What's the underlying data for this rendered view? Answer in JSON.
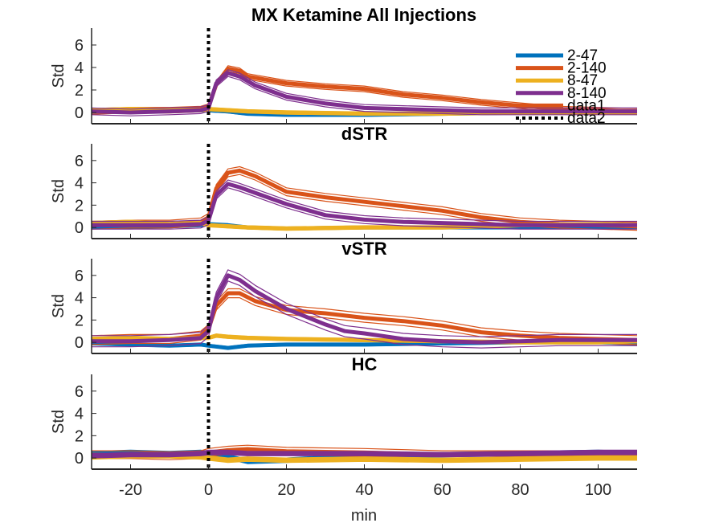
{
  "chart_data": {
    "type": "line",
    "title": "MX Ketamine All Injections",
    "xlabel": "min",
    "ylabel": "Std",
    "xlim": [
      -30,
      110
    ],
    "ylim": [
      -1,
      7.5
    ],
    "x_ticks": [
      -20,
      0,
      20,
      40,
      60,
      80,
      100
    ],
    "x_tick_labels": [
      "-20",
      "0",
      "20",
      "40",
      "60",
      "80",
      "100"
    ],
    "y_ticks": [
      0,
      2,
      4,
      6
    ],
    "y_tick_labels": [
      "0",
      "2",
      "4",
      "6"
    ],
    "grid": false,
    "legend_position": "top-right",
    "legend": [
      {
        "label": "2-47",
        "color": "#0072BD",
        "style": "solid"
      },
      {
        "label": "2-140",
        "color": "#D95319",
        "style": "solid"
      },
      {
        "label": "8-47",
        "color": "#EDB120",
        "style": "solid"
      },
      {
        "label": "8-140",
        "color": "#7E2F8E",
        "style": "solid"
      },
      {
        "label": "data1",
        "color": "#D95319",
        "style": "solid"
      },
      {
        "label": "data2",
        "color": "#000000",
        "style": "dotted"
      }
    ],
    "injection_marker_x": 0,
    "panels": [
      {
        "title": "",
        "series": [
          {
            "name": "2-47",
            "x": [
              -30,
              -20,
              -10,
              -2,
              0,
              5,
              10,
              20,
              40,
              60,
              80,
              100,
              110
            ],
            "y": [
              0.1,
              0.1,
              0.15,
              0.2,
              0.2,
              0.1,
              -0.1,
              -0.2,
              -0.2,
              -0.1,
              0.0,
              0.0,
              0.0
            ],
            "band": 0.15
          },
          {
            "name": "2-140",
            "x": [
              -30,
              -20,
              -10,
              -2,
              0,
              2,
              5,
              8,
              10,
              20,
              30,
              40,
              50,
              60,
              70,
              80,
              90,
              100,
              110
            ],
            "y": [
              0.1,
              0.2,
              0.2,
              0.3,
              0.5,
              2.5,
              3.9,
              3.7,
              3.2,
              2.6,
              2.3,
              2.1,
              1.6,
              1.3,
              0.9,
              0.6,
              0.3,
              0.2,
              0.1
            ],
            "band": 0.25
          },
          {
            "name": "8-47",
            "x": [
              -30,
              -20,
              -10,
              -2,
              0,
              10,
              20,
              40,
              60,
              80,
              100,
              110
            ],
            "y": [
              0.2,
              0.3,
              0.2,
              0.2,
              0.3,
              0.1,
              0.0,
              -0.1,
              -0.1,
              0.0,
              0.0,
              0.0
            ],
            "band": 0.15
          },
          {
            "name": "8-140",
            "x": [
              -30,
              -20,
              -10,
              -2,
              0,
              2,
              5,
              8,
              12,
              20,
              30,
              40,
              50,
              60,
              70,
              80,
              90,
              100,
              110
            ],
            "y": [
              0.1,
              0.0,
              0.1,
              0.2,
              0.4,
              2.6,
              3.5,
              3.2,
              2.4,
              1.4,
              0.8,
              0.4,
              0.3,
              0.2,
              0.1,
              0.1,
              0.1,
              0.1,
              0.1
            ],
            "band": 0.3
          }
        ]
      },
      {
        "title": "dSTR",
        "series": [
          {
            "name": "2-47",
            "x": [
              -30,
              -20,
              -10,
              -2,
              0,
              5,
              10,
              20,
              40,
              60,
              80,
              100,
              110
            ],
            "y": [
              0.0,
              0.0,
              0.1,
              0.2,
              0.3,
              0.2,
              0.0,
              -0.1,
              0.0,
              0.0,
              0.0,
              0.0,
              0.0
            ],
            "band": 0.12
          },
          {
            "name": "2-140",
            "x": [
              -30,
              -20,
              -10,
              -2,
              0,
              2,
              5,
              8,
              12,
              20,
              30,
              40,
              50,
              60,
              70,
              80,
              90,
              100,
              110
            ],
            "y": [
              0.2,
              0.3,
              0.3,
              0.5,
              0.9,
              3.5,
              4.9,
              5.1,
              4.6,
              3.2,
              2.7,
              2.3,
              1.9,
              1.5,
              0.9,
              0.5,
              0.3,
              0.2,
              0.1
            ],
            "band": 0.35
          },
          {
            "name": "8-47",
            "x": [
              -30,
              -20,
              -10,
              -2,
              0,
              10,
              20,
              40,
              60,
              80,
              100,
              110
            ],
            "y": [
              0.4,
              0.5,
              0.3,
              0.4,
              0.2,
              0.0,
              -0.1,
              0.0,
              0.0,
              0.2,
              0.3,
              0.2
            ],
            "band": 0.15
          },
          {
            "name": "8-140",
            "x": [
              -30,
              -20,
              -10,
              -2,
              0,
              2,
              5,
              8,
              12,
              20,
              30,
              40,
              50,
              60,
              70,
              80,
              90,
              100,
              110
            ],
            "y": [
              0.2,
              0.2,
              0.2,
              0.3,
              0.6,
              2.9,
              3.9,
              3.6,
              3.1,
              2.1,
              1.1,
              0.7,
              0.5,
              0.4,
              0.3,
              0.2,
              0.2,
              0.2,
              0.2
            ],
            "band": 0.35
          }
        ]
      },
      {
        "title": "vSTR",
        "series": [
          {
            "name": "2-47",
            "x": [
              -30,
              -20,
              -10,
              -2,
              0,
              5,
              10,
              20,
              40,
              60,
              80,
              100,
              110
            ],
            "y": [
              -0.1,
              -0.2,
              -0.3,
              -0.2,
              -0.3,
              -0.5,
              -0.3,
              -0.2,
              -0.2,
              -0.1,
              0.0,
              0.0,
              -0.1
            ],
            "band": 0.12
          },
          {
            "name": "2-140",
            "x": [
              -30,
              -20,
              -10,
              -2,
              0,
              2,
              5,
              8,
              12,
              20,
              30,
              40,
              50,
              60,
              70,
              80,
              90,
              100,
              110
            ],
            "y": [
              0.2,
              0.3,
              0.3,
              0.6,
              1.2,
              3.3,
              4.4,
              4.4,
              3.7,
              2.9,
              2.6,
              2.2,
              1.9,
              1.5,
              0.9,
              0.6,
              0.4,
              0.3,
              0.2
            ],
            "band": 0.4
          },
          {
            "name": "8-47",
            "x": [
              -30,
              -20,
              -10,
              -2,
              0,
              2,
              5,
              10,
              20,
              40,
              60,
              80,
              100,
              110
            ],
            "y": [
              0.3,
              0.4,
              0.3,
              0.4,
              0.4,
              0.6,
              0.5,
              0.4,
              0.3,
              0.2,
              0.1,
              0.0,
              0.0,
              0.1
            ],
            "band": 0.15
          },
          {
            "name": "8-140",
            "x": [
              -30,
              -20,
              -10,
              -2,
              0,
              2,
              5,
              8,
              12,
              20,
              30,
              35,
              40,
              50,
              60,
              70,
              80,
              90,
              100,
              110
            ],
            "y": [
              0.1,
              0.1,
              0.2,
              0.4,
              1.0,
              4.0,
              6.0,
              5.6,
              4.6,
              3.0,
              1.6,
              1.0,
              0.8,
              0.3,
              0.1,
              0.0,
              0.1,
              0.2,
              0.2,
              0.2
            ],
            "band": 0.5
          }
        ]
      },
      {
        "title": "HC",
        "series": [
          {
            "name": "2-47",
            "x": [
              -30,
              -20,
              -10,
              -2,
              0,
              5,
              10,
              20,
              40,
              60,
              80,
              100,
              110
            ],
            "y": [
              0.4,
              0.5,
              0.4,
              0.5,
              0.4,
              0.1,
              -0.3,
              -0.2,
              0.2,
              0.3,
              0.4,
              0.5,
              0.4
            ],
            "band": 0.2
          },
          {
            "name": "2-140",
            "x": [
              -30,
              -20,
              -10,
              -2,
              0,
              5,
              10,
              20,
              40,
              60,
              80,
              100,
              110
            ],
            "y": [
              0.3,
              0.3,
              0.2,
              0.3,
              0.5,
              0.7,
              0.8,
              0.6,
              0.5,
              0.3,
              0.3,
              0.3,
              0.2
            ],
            "band": 0.35
          },
          {
            "name": "8-47",
            "x": [
              -30,
              -20,
              -10,
              -2,
              0,
              5,
              10,
              20,
              40,
              60,
              80,
              100,
              110
            ],
            "y": [
              0.1,
              0.2,
              0.2,
              0.1,
              0.0,
              -0.2,
              -0.1,
              -0.2,
              -0.1,
              -0.2,
              -0.1,
              0.0,
              0.0
            ],
            "band": 0.2
          },
          {
            "name": "8-140",
            "x": [
              -30,
              -20,
              -10,
              -2,
              0,
              5,
              10,
              20,
              40,
              60,
              80,
              100,
              110
            ],
            "y": [
              0.2,
              0.3,
              0.3,
              0.4,
              0.5,
              0.5,
              0.4,
              0.4,
              0.4,
              0.3,
              0.4,
              0.5,
              0.5
            ],
            "band": 0.2
          }
        ]
      }
    ]
  }
}
